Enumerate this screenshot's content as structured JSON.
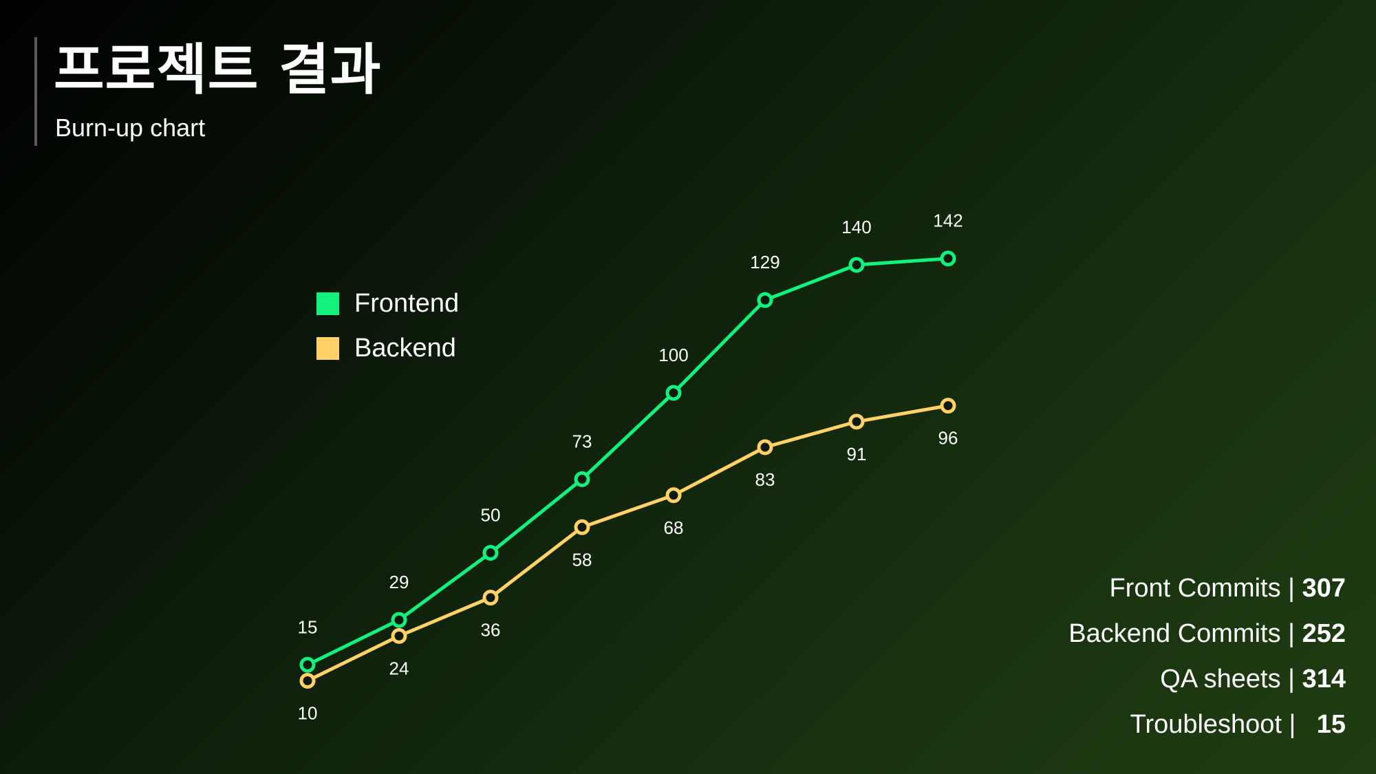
{
  "header": {
    "title": "프로젝트 결과",
    "subtitle": "Burn-up chart"
  },
  "chart_data": {
    "type": "line",
    "title": "Burn-up chart",
    "xlabel": "",
    "ylabel": "",
    "x": [
      1,
      2,
      3,
      4,
      5,
      6,
      7,
      8
    ],
    "ylim": [
      0,
      160
    ],
    "grid": false,
    "legend_position": "top-left",
    "series": [
      {
        "name": "Frontend",
        "color": "#12f07e",
        "values": [
          15,
          29,
          50,
          73,
          100,
          129,
          140,
          142
        ]
      },
      {
        "name": "Backend",
        "color": "#ffd166",
        "values": [
          10,
          24,
          36,
          58,
          68,
          83,
          91,
          96
        ]
      }
    ]
  },
  "stats": [
    {
      "label": "Front Commits |",
      "value": "307"
    },
    {
      "label": "Backend Commits |",
      "value": "252"
    },
    {
      "label": "QA sheets |",
      "value": "314"
    },
    {
      "label": "Troubleshoot |",
      "value": "15"
    }
  ]
}
